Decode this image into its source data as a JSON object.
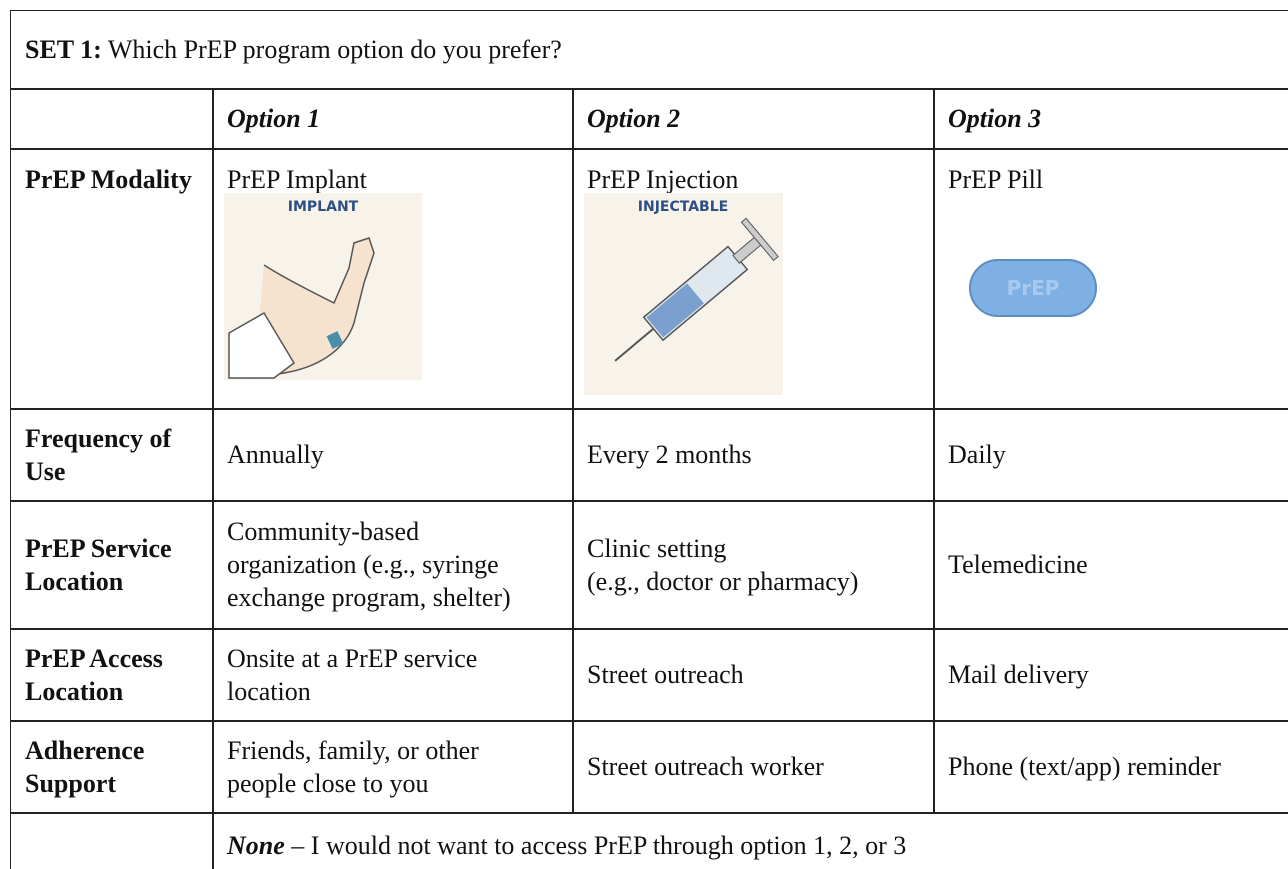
{
  "title": {
    "bold": "SET 1:",
    "text": "Which PrEP program option do you prefer?"
  },
  "table": {
    "header": [
      "Option 1",
      "Option 2",
      "Option 3"
    ],
    "rows": [
      {
        "label": "PrEP Modality",
        "cells": [
          [
            "PrEP Implant"
          ],
          [
            "PrEP Injection"
          ],
          [
            "PrEP Pill"
          ]
        ]
      },
      {
        "label": "Frequency of Use",
        "cells": [
          [
            "Annually"
          ],
          [
            "Every 2 months"
          ],
          [
            "Daily"
          ]
        ]
      },
      {
        "label": "PrEP Service Location",
        "cells": [
          [
            "Community-based",
            "organization (e.g., syringe",
            "exchange program, shelter)"
          ],
          [
            "Clinic setting",
            "(e.g., doctor or pharmacy)"
          ],
          [
            "Telemedicine"
          ]
        ]
      },
      {
        "label": "PrEP Access Location",
        "cells": [
          [
            "Onsite at a PrEP service",
            "location"
          ],
          [
            "Street outreach"
          ],
          [
            "Mail delivery"
          ]
        ]
      },
      {
        "label": "Adherence Support",
        "cells": [
          [
            "Friends, family, or other",
            "people close to you"
          ],
          [
            "Street outreach worker"
          ],
          [
            "Phone (text/app) reminder"
          ]
        ]
      }
    ],
    "footer": {
      "bold": "None",
      "text": "– I would not want to access PrEP through option 1, 2, or 3"
    }
  },
  "images": [
    "IMPLANT",
    "INJECTABLE",
    "PrEP"
  ]
}
